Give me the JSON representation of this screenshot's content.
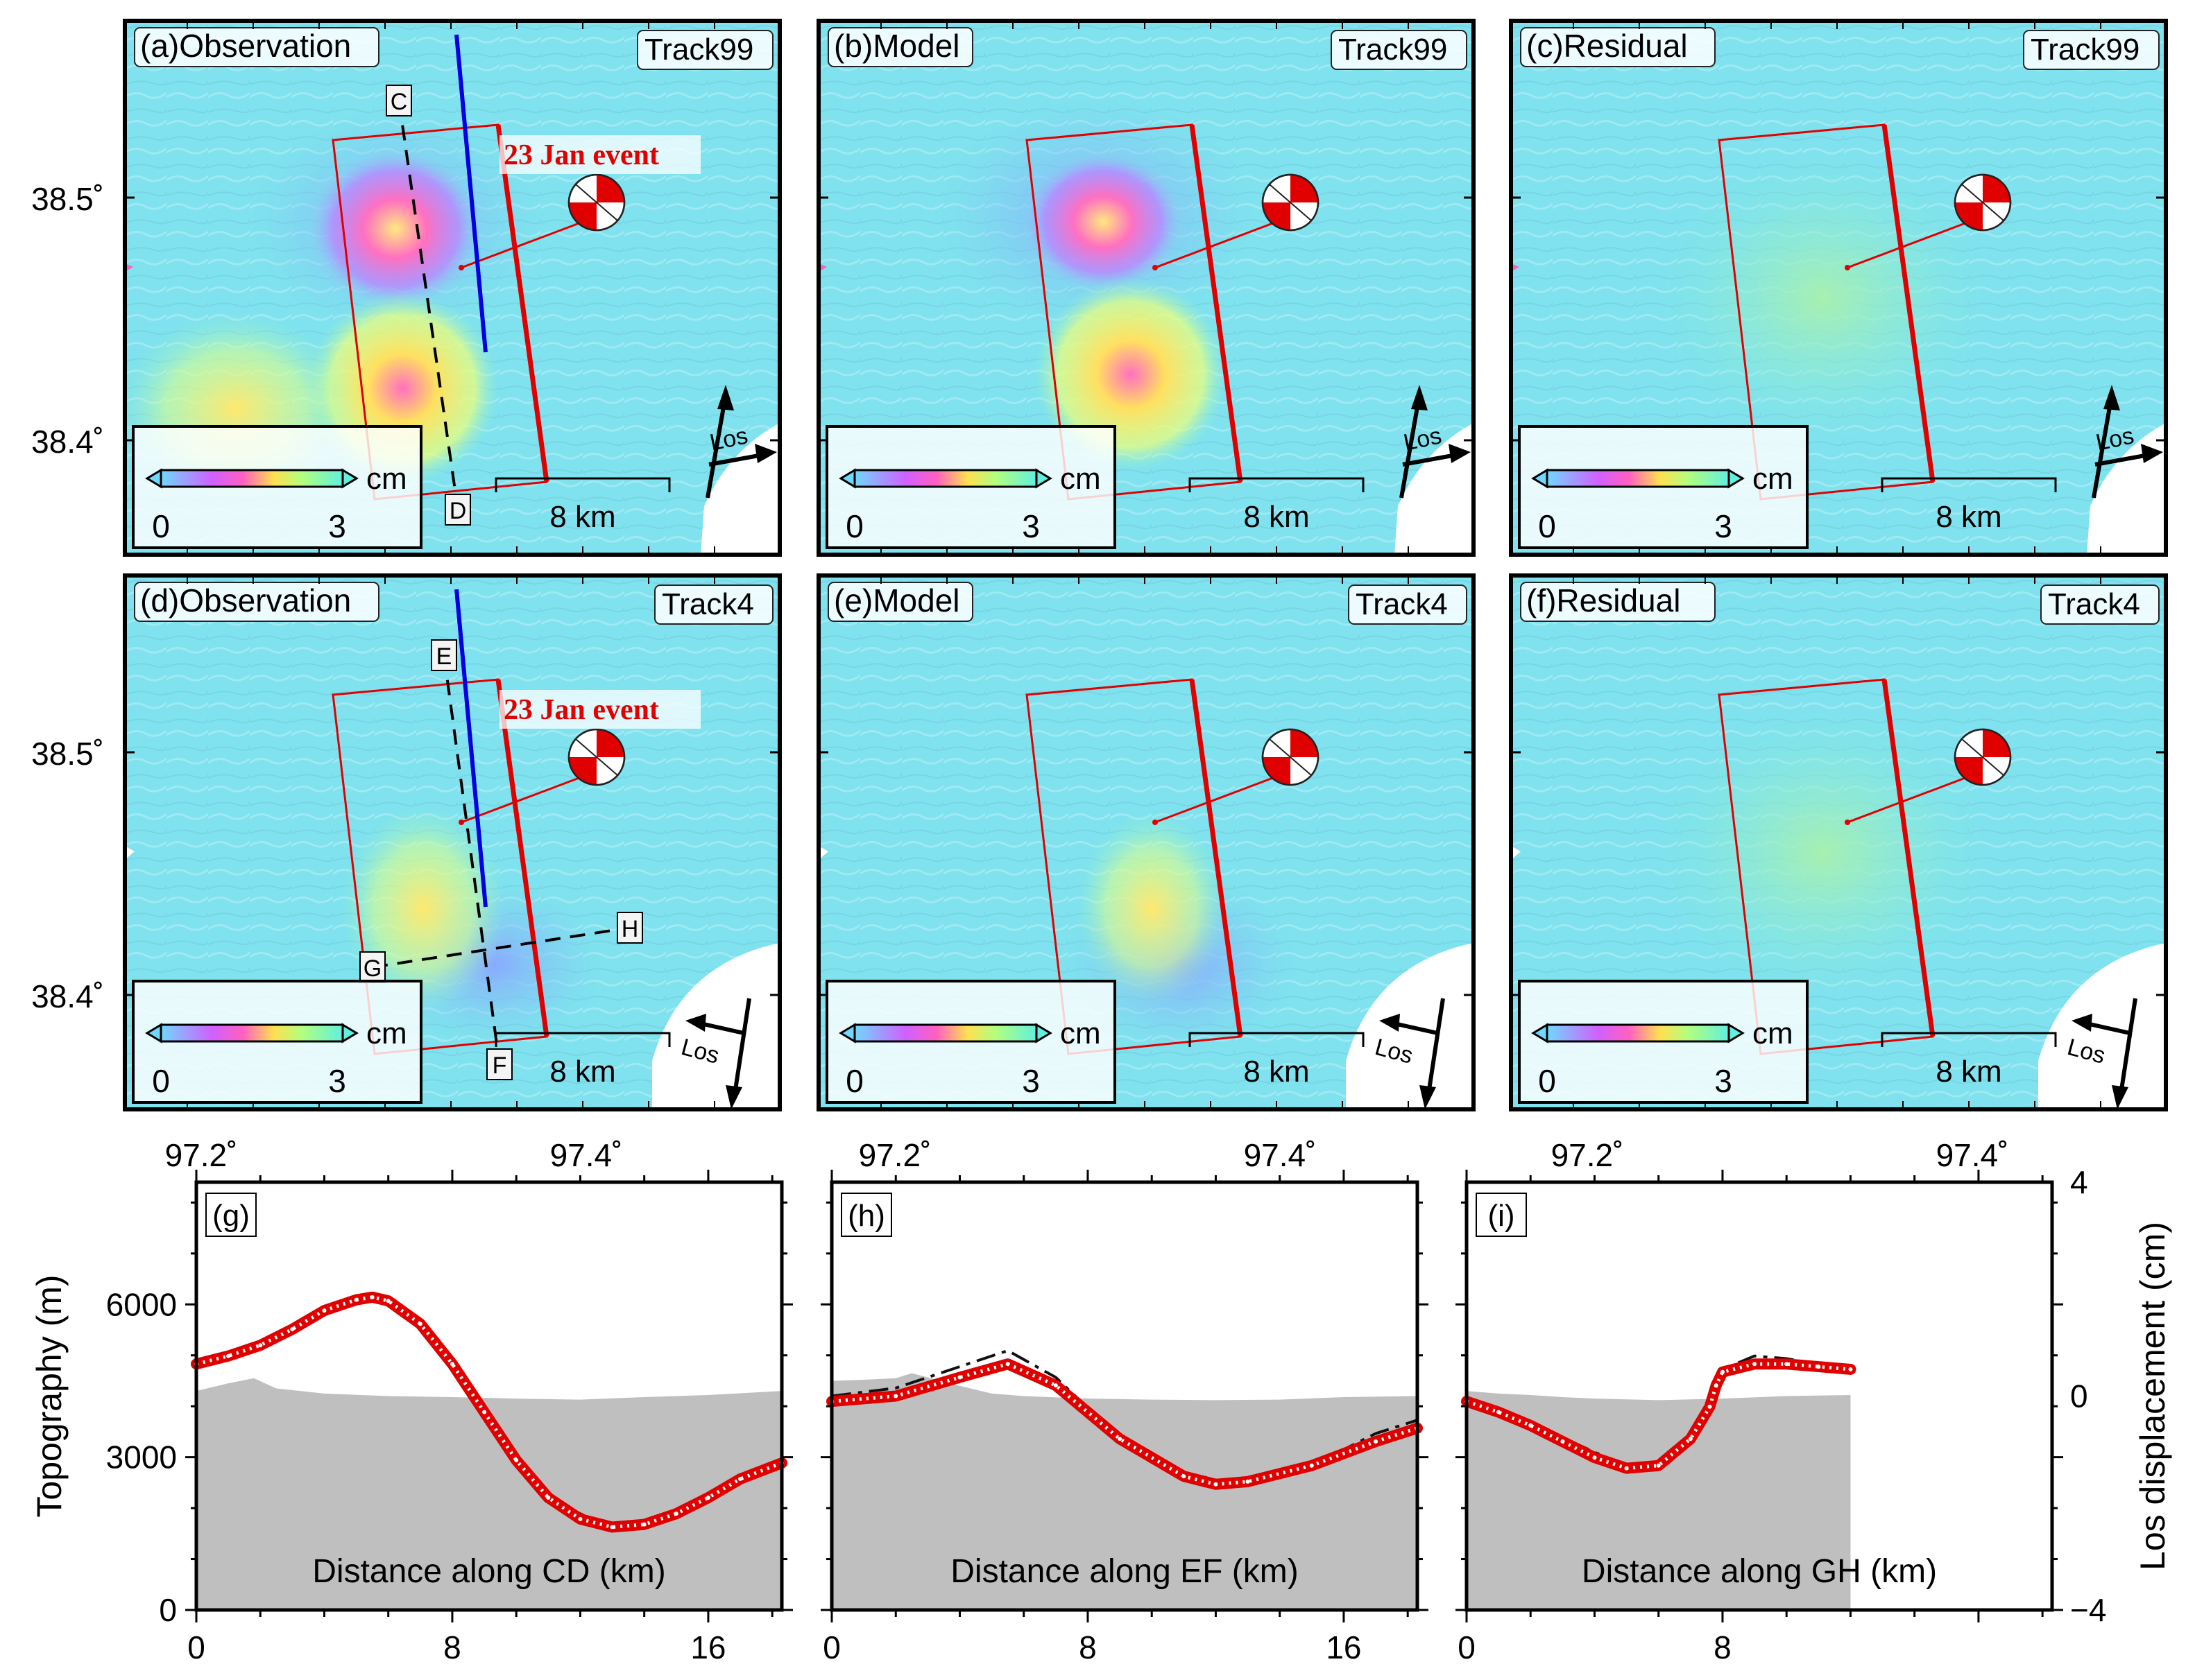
{
  "maps": [
    {
      "label": "(a)Observation",
      "track": "Track99",
      "asc": true,
      "kind": "obs",
      "event": "23 Jan event",
      "profile": {
        "start": "C",
        "end": "D"
      }
    },
    {
      "label": "(b)Model",
      "track": "Track99",
      "asc": true,
      "kind": "model"
    },
    {
      "label": "(c)Residual",
      "track": "Track99",
      "asc": true,
      "kind": "resid"
    },
    {
      "label": "(d)Observation",
      "track": "Track4",
      "asc": false,
      "kind": "obs",
      "event": "23 Jan event",
      "profile": {
        "start": "E",
        "end": "F"
      },
      "profile2": {
        "start": "G",
        "end": "H"
      }
    },
    {
      "label": "(e)Model",
      "track": "Track4",
      "asc": false,
      "kind": "model"
    },
    {
      "label": "(f)Residual",
      "track": "Track4",
      "asc": false,
      "kind": "resid"
    }
  ],
  "colorbar": {
    "unit": "cm",
    "min": "0",
    "max": "3"
  },
  "scalebar": "8 km",
  "los_label": "Los",
  "lat_ticks": [
    "38.5˚",
    "38.4˚"
  ],
  "lon_ticks": [
    "97.2˚",
    "97.4˚"
  ],
  "colors": {
    "fault": "#e00000",
    "blue_fault": "#0000e0",
    "topo": "#bfbfbf",
    "obs": "#ffffff",
    "model": "#111111"
  },
  "chart_data": [
    {
      "type": "line",
      "label": "(g)",
      "xlabel": "Distance along CD (km)",
      "xlim": [
        0,
        18.3
      ],
      "xticks": [
        "0",
        "8",
        "16"
      ],
      "ylabel": "Topography (m)",
      "ylim": [
        0,
        8400
      ],
      "yticks": [
        "0",
        "3000",
        "6000"
      ],
      "series": [
        {
          "name": "observed LOS",
          "unit": "cm",
          "x": [
            0,
            1,
            2,
            3,
            4,
            5,
            5.5,
            6,
            7,
            8,
            9,
            10,
            11,
            12,
            13,
            14,
            15,
            16,
            17,
            18.3
          ],
          "y": [
            0.6,
            0.75,
            0.95,
            1.25,
            1.6,
            1.8,
            1.85,
            1.78,
            1.35,
            0.6,
            -0.3,
            -1.2,
            -1.9,
            -2.3,
            -2.45,
            -2.4,
            -2.2,
            -1.9,
            -1.55,
            -1.25
          ]
        },
        {
          "name": "model LOS",
          "unit": "cm",
          "x": [
            0,
            2,
            4,
            5.5,
            7,
            9,
            11,
            13,
            14,
            16,
            18.3
          ],
          "y": [
            0.6,
            0.95,
            1.6,
            1.9,
            1.35,
            -0.3,
            -1.9,
            -2.5,
            -2.4,
            -1.9,
            -1.25
          ]
        },
        {
          "name": "topography",
          "unit": "m",
          "x": [
            0,
            1,
            1.8,
            2.5,
            4,
            6,
            8,
            10,
            12,
            14,
            16,
            18.3
          ],
          "y": [
            4300,
            4450,
            4550,
            4350,
            4250,
            4200,
            4180,
            4150,
            4130,
            4180,
            4220,
            4300
          ]
        }
      ]
    },
    {
      "type": "line",
      "label": "(h)",
      "xlabel": "Distance along EF (km)",
      "xlim": [
        0,
        18.3
      ],
      "xticks": [
        "0",
        "8",
        "16"
      ],
      "ylabel": "",
      "ylim": [
        0,
        8400
      ],
      "yticks": [],
      "series": [
        {
          "name": "observed LOS",
          "unit": "cm",
          "x": [
            0,
            2,
            4,
            5.5,
            7,
            9,
            11,
            12,
            13,
            15,
            17,
            18.3
          ],
          "y": [
            -0.1,
            0,
            0.35,
            0.6,
            0.2,
            -0.8,
            -1.5,
            -1.65,
            -1.6,
            -1.3,
            -0.85,
            -0.6
          ]
        },
        {
          "name": "model LOS",
          "unit": "cm",
          "x": [
            0,
            2,
            4,
            5.5,
            7,
            9,
            11,
            12,
            13,
            15,
            17,
            18.3
          ],
          "y": [
            0,
            0.15,
            0.55,
            0.85,
            0.35,
            -0.8,
            -1.55,
            -1.7,
            -1.65,
            -1.3,
            -0.7,
            -0.45
          ]
        },
        {
          "name": "topography",
          "unit": "m",
          "x": [
            0,
            1,
            2,
            2.5,
            4,
            5,
            6,
            8,
            10,
            12,
            14,
            16,
            18.3
          ],
          "y": [
            4500,
            4520,
            4550,
            4650,
            4400,
            4250,
            4200,
            4150,
            4130,
            4120,
            4130,
            4180,
            4200
          ]
        }
      ]
    },
    {
      "type": "line",
      "label": "(i)",
      "xlabel": "Distance along GH (km)",
      "xlim": [
        0,
        18.3
      ],
      "xticks": [
        "0",
        "8"
      ],
      "ylabel": "Los displacement (cm)",
      "ylim": [
        -4,
        4
      ],
      "yticks": [
        "4",
        "0",
        "−4"
      ],
      "series": [
        {
          "name": "observed LOS",
          "unit": "cm",
          "x": [
            0,
            1,
            2,
            3,
            4,
            5,
            6,
            7,
            7.6,
            7.8,
            8,
            9,
            10,
            11,
            12
          ],
          "y": [
            -0.1,
            -0.3,
            -0.55,
            -0.85,
            -1.15,
            -1.35,
            -1.3,
            -0.8,
            -0.2,
            0.2,
            0.45,
            0.6,
            0.6,
            0.55,
            0.5
          ]
        },
        {
          "name": "model LOS",
          "unit": "cm",
          "x": [
            0,
            2,
            4,
            5,
            6,
            7,
            7.6,
            8,
            9,
            10,
            12
          ],
          "y": [
            -0.1,
            -0.5,
            -1.05,
            -1.3,
            -1.25,
            -0.7,
            -0.1,
            0.5,
            0.75,
            0.7,
            0.5
          ]
        },
        {
          "name": "topography",
          "unit": "m",
          "x": [
            0,
            1,
            2,
            3,
            4,
            6,
            8,
            10,
            12
          ],
          "y": [
            4300,
            4250,
            4220,
            4180,
            4150,
            4120,
            4150,
            4200,
            4220
          ]
        }
      ]
    }
  ]
}
